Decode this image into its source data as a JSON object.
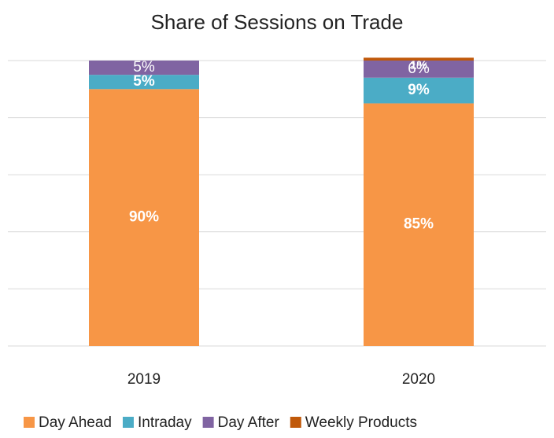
{
  "chart_data": {
    "type": "stacked_bar",
    "title": "Share of Sessions on Trade",
    "categories": [
      "2019",
      "2020"
    ],
    "series": [
      {
        "name": "Day Ahead",
        "color": "#f79646",
        "values": [
          90,
          85
        ],
        "value_labels": [
          "90%",
          "85%"
        ]
      },
      {
        "name": "Intraday",
        "color": "#4bacc6",
        "values": [
          5,
          9
        ],
        "value_labels": [
          "5%",
          "9%"
        ]
      },
      {
        "name": "Day After",
        "color": "#8064a2",
        "values": [
          5,
          6
        ],
        "value_labels": [
          "5%",
          "6%"
        ]
      },
      {
        "name": "Weekly Products",
        "color": "#c0590a",
        "values": [
          null,
          1
        ],
        "value_labels": [
          null,
          "1%"
        ]
      }
    ],
    "ylim": [
      0,
      100
    ],
    "yticks": [
      0,
      20,
      40,
      60,
      80,
      100
    ],
    "grid": true,
    "legend": "bottom"
  }
}
